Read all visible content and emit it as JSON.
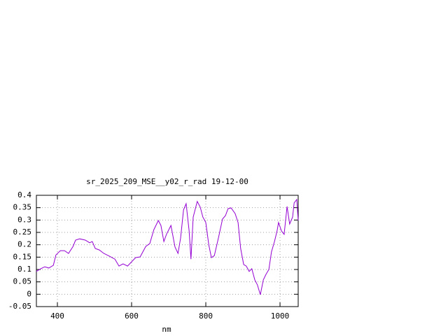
{
  "chart_data": {
    "type": "line",
    "title": "sr_2025_209_MSE__y02_r_rad 19-12-00",
    "x_label": "nm",
    "series": [
      {
        "color": "#9400d3",
        "x": [
          343,
          355,
          366,
          377,
          389,
          396,
          408,
          419,
          430,
          442,
          449,
          460,
          475,
          487,
          494,
          502,
          513,
          525,
          540,
          555,
          566,
          577,
          589,
          600,
          611,
          623,
          638,
          649,
          660,
          672,
          679,
          687,
          694,
          706,
          717,
          725,
          732,
          740,
          747,
          755,
          760,
          766,
          777,
          785,
          792,
          800,
          808,
          815,
          823,
          834,
          845,
          853,
          860,
          868,
          879,
          887,
          894,
          902,
          909,
          917,
          924,
          932,
          939,
          947,
          955,
          962,
          970,
          977,
          985,
          992,
          996,
          1004,
          1011,
          1019,
          1026,
          1034,
          1038,
          1045,
          1049
        ],
        "values": [
          0.092,
          0.103,
          0.111,
          0.106,
          0.117,
          0.159,
          0.176,
          0.176,
          0.165,
          0.193,
          0.219,
          0.224,
          0.219,
          0.208,
          0.213,
          0.185,
          0.179,
          0.165,
          0.154,
          0.142,
          0.114,
          0.123,
          0.114,
          0.131,
          0.148,
          0.151,
          0.193,
          0.205,
          0.261,
          0.298,
          0.278,
          0.213,
          0.242,
          0.278,
          0.191,
          0.165,
          0.227,
          0.341,
          0.366,
          0.256,
          0.142,
          0.312,
          0.375,
          0.352,
          0.312,
          0.29,
          0.199,
          0.148,
          0.156,
          0.227,
          0.304,
          0.318,
          0.346,
          0.349,
          0.326,
          0.29,
          0.185,
          0.12,
          0.114,
          0.092,
          0.103,
          0.058,
          0.038,
          -0.002,
          0.058,
          0.08,
          0.1,
          0.171,
          0.213,
          0.256,
          0.29,
          0.256,
          0.242,
          0.355,
          0.284,
          0.312,
          0.369,
          0.383,
          0.298
        ]
      }
    ],
    "xlim": [
      343.4,
      1049
    ],
    "ylim": [
      -0.05,
      0.4
    ],
    "xticks": [
      400,
      600,
      800,
      1000
    ],
    "yticks": [
      -0.05,
      0,
      0.05,
      0.1,
      0.15,
      0.2,
      0.25,
      0.3,
      0.35,
      0.4
    ],
    "grid": true
  }
}
